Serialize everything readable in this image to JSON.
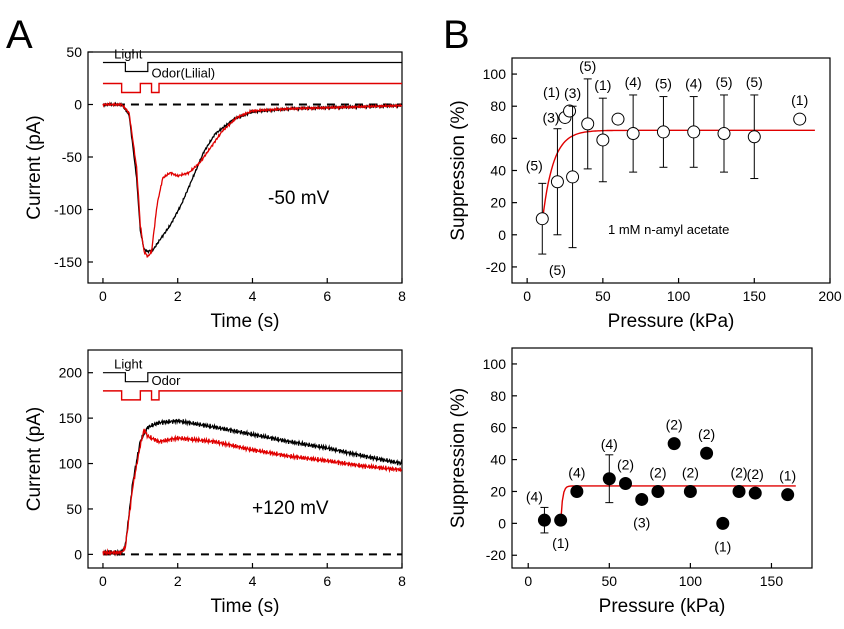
{
  "colors": {
    "black": "#000000",
    "red": "#e00000"
  },
  "chart_data": [
    {
      "panel": "A",
      "type": "line",
      "xlabel": "Time (s)",
      "ylabel": "Current (pA)",
      "xlim": [
        -0.4,
        8
      ],
      "ylim": [
        -170,
        50
      ],
      "xticks": [
        0,
        2,
        4,
        6,
        8
      ],
      "yticks": [
        -150,
        -100,
        -50,
        0,
        50
      ],
      "annotation": "-50 mV",
      "stim_labels": [
        "Light",
        "Odor(Lilial)"
      ],
      "zero_line": "dashed",
      "series": [
        {
          "color": "#000000",
          "x": [
            0,
            0.5,
            0.7,
            0.9,
            1.0,
            1.1,
            1.2,
            1.35,
            1.5,
            1.8,
            2.1,
            2.4,
            2.7,
            3.0,
            3.5,
            4.0,
            5.0,
            6.0,
            7.0,
            8.0
          ],
          "y": [
            0,
            0,
            -10,
            -70,
            -120,
            -138,
            -140,
            -138,
            -130,
            -115,
            -95,
            -70,
            -45,
            -28,
            -14,
            -7,
            -4,
            -3,
            -2,
            -1
          ]
        },
        {
          "color": "#e00000",
          "x": [
            0,
            0.5,
            0.7,
            0.9,
            1.0,
            1.1,
            1.2,
            1.3,
            1.45,
            1.6,
            1.8,
            2.0,
            2.3,
            2.6,
            2.9,
            3.2,
            3.6,
            4.0,
            5.0,
            6.0,
            7.0,
            8.0
          ],
          "y": [
            0,
            0,
            -8,
            -60,
            -115,
            -140,
            -145,
            -140,
            -95,
            -70,
            -65,
            -68,
            -65,
            -55,
            -40,
            -25,
            -12,
            -6,
            -4,
            -3,
            -2,
            -1
          ]
        }
      ]
    },
    {
      "panel": "A2",
      "type": "line",
      "xlabel": "Time (s)",
      "ylabel": "Current (pA)",
      "xlim": [
        -0.4,
        8
      ],
      "ylim": [
        -15,
        225
      ],
      "xticks": [
        0,
        2,
        4,
        6,
        8
      ],
      "yticks": [
        0,
        50,
        100,
        150,
        200
      ],
      "annotation": "+120 mV",
      "stim_labels": [
        "Light",
        "Odor"
      ],
      "zero_line": "dashed",
      "series": [
        {
          "color": "#000000",
          "x": [
            0,
            0.5,
            0.6,
            0.8,
            1.0,
            1.2,
            1.5,
            2.0,
            3.0,
            4.0,
            5.0,
            6.0,
            7.0,
            8.0
          ],
          "y": [
            2,
            2,
            10,
            80,
            125,
            140,
            145,
            147,
            140,
            132,
            124,
            117,
            108,
            100
          ]
        },
        {
          "color": "#e00000",
          "x": [
            0,
            0.5,
            0.6,
            0.8,
            1.0,
            1.1,
            1.2,
            1.5,
            2.0,
            3.0,
            4.0,
            5.0,
            6.0,
            7.0,
            8.0
          ],
          "y": [
            2,
            2,
            8,
            75,
            120,
            137,
            130,
            124,
            128,
            124,
            115,
            108,
            103,
            97,
            93
          ]
        }
      ]
    },
    {
      "panel": "B",
      "type": "scatter",
      "xlabel": "Pressure (kPa)",
      "ylabel": "Suppression (%)",
      "xlim": [
        -10,
        200
      ],
      "ylim": [
        -30,
        110
      ],
      "xticks": [
        0,
        50,
        100,
        150,
        200
      ],
      "yticks": [
        -20,
        0,
        20,
        40,
        60,
        80,
        100
      ],
      "annotation": "1 mM n-amyl acetate",
      "marker": "open-circle",
      "points": [
        {
          "x": 10,
          "y": 10,
          "err": 22,
          "n": "(5)"
        },
        {
          "x": 20,
          "y": 33,
          "err": 33,
          "n": "(5)"
        },
        {
          "x": 25,
          "y": 73,
          "err": 0,
          "n": "(3)"
        },
        {
          "x": 28,
          "y": 77,
          "err": 0,
          "n": "(1)"
        },
        {
          "x": 30,
          "y": 36,
          "err": 44,
          "n": "(3)"
        },
        {
          "x": 40,
          "y": 69,
          "err": 28,
          "n": "(5)"
        },
        {
          "x": 50,
          "y": 59,
          "err": 26,
          "n": "(1)"
        },
        {
          "x": 60,
          "y": 72,
          "err": 0,
          "n": ""
        },
        {
          "x": 70,
          "y": 63,
          "err": 24,
          "n": "(4)"
        },
        {
          "x": 90,
          "y": 64,
          "err": 22,
          "n": "(5)"
        },
        {
          "x": 110,
          "y": 64,
          "err": 22,
          "n": "(4)"
        },
        {
          "x": 130,
          "y": 63,
          "err": 24,
          "n": "(5)"
        },
        {
          "x": 150,
          "y": 61,
          "err": 26,
          "n": "(5)"
        },
        {
          "x": 180,
          "y": 72,
          "err": 0,
          "n": "(1)"
        }
      ],
      "fit": {
        "color": "#e00000",
        "plateau": 65,
        "k": 0.14,
        "x0": 10,
        "y0": 8
      }
    },
    {
      "panel": "B2",
      "type": "scatter",
      "xlabel": "Pressure (kPa)",
      "ylabel": "Suppression (%)",
      "xlim": [
        -10,
        175
      ],
      "ylim": [
        -28,
        110
      ],
      "xticks": [
        0,
        50,
        100,
        150
      ],
      "yticks": [
        -20,
        0,
        20,
        40,
        60,
        80,
        100
      ],
      "marker": "filled-circle",
      "points": [
        {
          "x": 10,
          "y": 2,
          "err": 8,
          "n": "(4)"
        },
        {
          "x": 20,
          "y": 2,
          "err": 0,
          "n": "(1)"
        },
        {
          "x": 30,
          "y": 20,
          "err": 0,
          "n": "(4)"
        },
        {
          "x": 50,
          "y": 28,
          "err": 15,
          "n": "(4)"
        },
        {
          "x": 60,
          "y": 25,
          "err": 0,
          "n": "(2)"
        },
        {
          "x": 70,
          "y": 15,
          "err": 0,
          "n": "(3)"
        },
        {
          "x": 80,
          "y": 20,
          "err": 0,
          "n": "(2)"
        },
        {
          "x": 90,
          "y": 50,
          "err": 0,
          "n": "(2)"
        },
        {
          "x": 100,
          "y": 20,
          "err": 0,
          "n": "(2)"
        },
        {
          "x": 110,
          "y": 44,
          "err": 0,
          "n": "(2)"
        },
        {
          "x": 120,
          "y": 0,
          "err": 0,
          "n": "(1)"
        },
        {
          "x": 130,
          "y": 20,
          "err": 0,
          "n": "(2)"
        },
        {
          "x": 140,
          "y": 19,
          "err": 0,
          "n": "(2)"
        },
        {
          "x": 160,
          "y": 18,
          "err": 0,
          "n": "(1)"
        }
      ],
      "fit": {
        "color": "#e00000",
        "plateau": 23.5,
        "k": 0.9,
        "x0": 20,
        "y0": 0
      }
    }
  ]
}
